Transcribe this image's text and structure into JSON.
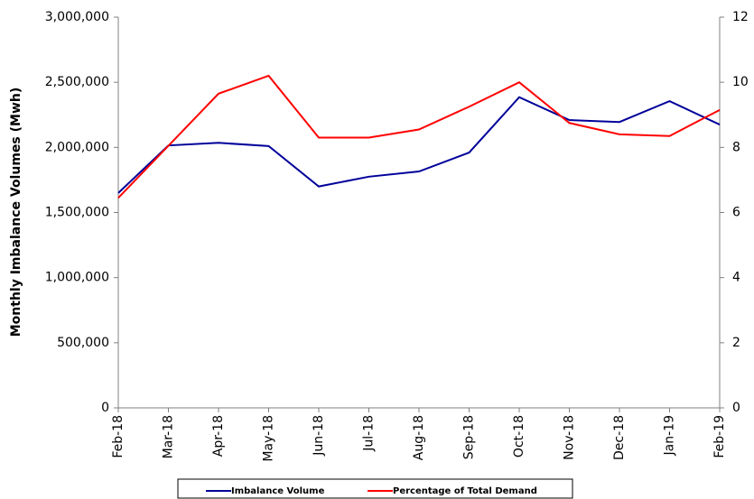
{
  "chart_data": {
    "type": "line",
    "y_label": "Monthly Imbalance Volumes (Mwh)",
    "categories": [
      "Feb-18",
      "Mar-18",
      "Apr-18",
      "May-18",
      "Jun-18",
      "Jul-18",
      "Aug-18",
      "Sep-18",
      "Oct-18",
      "Nov-18",
      "Dec-18",
      "Jan-19",
      "Feb-19"
    ],
    "series": [
      {
        "name": "Imbalance Volume",
        "color": "#00009a",
        "values": [
          1650000,
          2015000,
          2035000,
          2010000,
          1700000,
          1775000,
          1815000,
          1960000,
          2385000,
          2210000,
          2195000,
          2355000,
          2175000
        ]
      },
      {
        "name": "Percentage of Total Demand",
        "color": "#ff0000",
        "axis": "y2",
        "values": [
          6.45,
          8.05,
          9.65,
          10.2,
          8.3,
          8.3,
          8.55,
          9.25,
          10.0,
          8.75,
          8.4,
          8.35,
          9.15
        ]
      }
    ],
    "ylim": [
      0,
      3000000
    ],
    "yticks": [
      0,
      {
        "value": 500000,
        "label": "500,000"
      },
      {
        "value": 1000000,
        "label": "1,000,000"
      },
      {
        "value": 1500000,
        "label": "1,500,000"
      },
      {
        "value": 2000000,
        "label": "2,000,000"
      },
      {
        "value": 2500000,
        "label": "2,500,000"
      },
      {
        "value": 3000000,
        "label": "3,000,000"
      }
    ],
    "y2lim": [
      0,
      12
    ],
    "y2ticks": [
      0,
      2,
      4,
      6,
      8,
      10,
      12
    ],
    "grid": false,
    "legend": "bottom"
  }
}
